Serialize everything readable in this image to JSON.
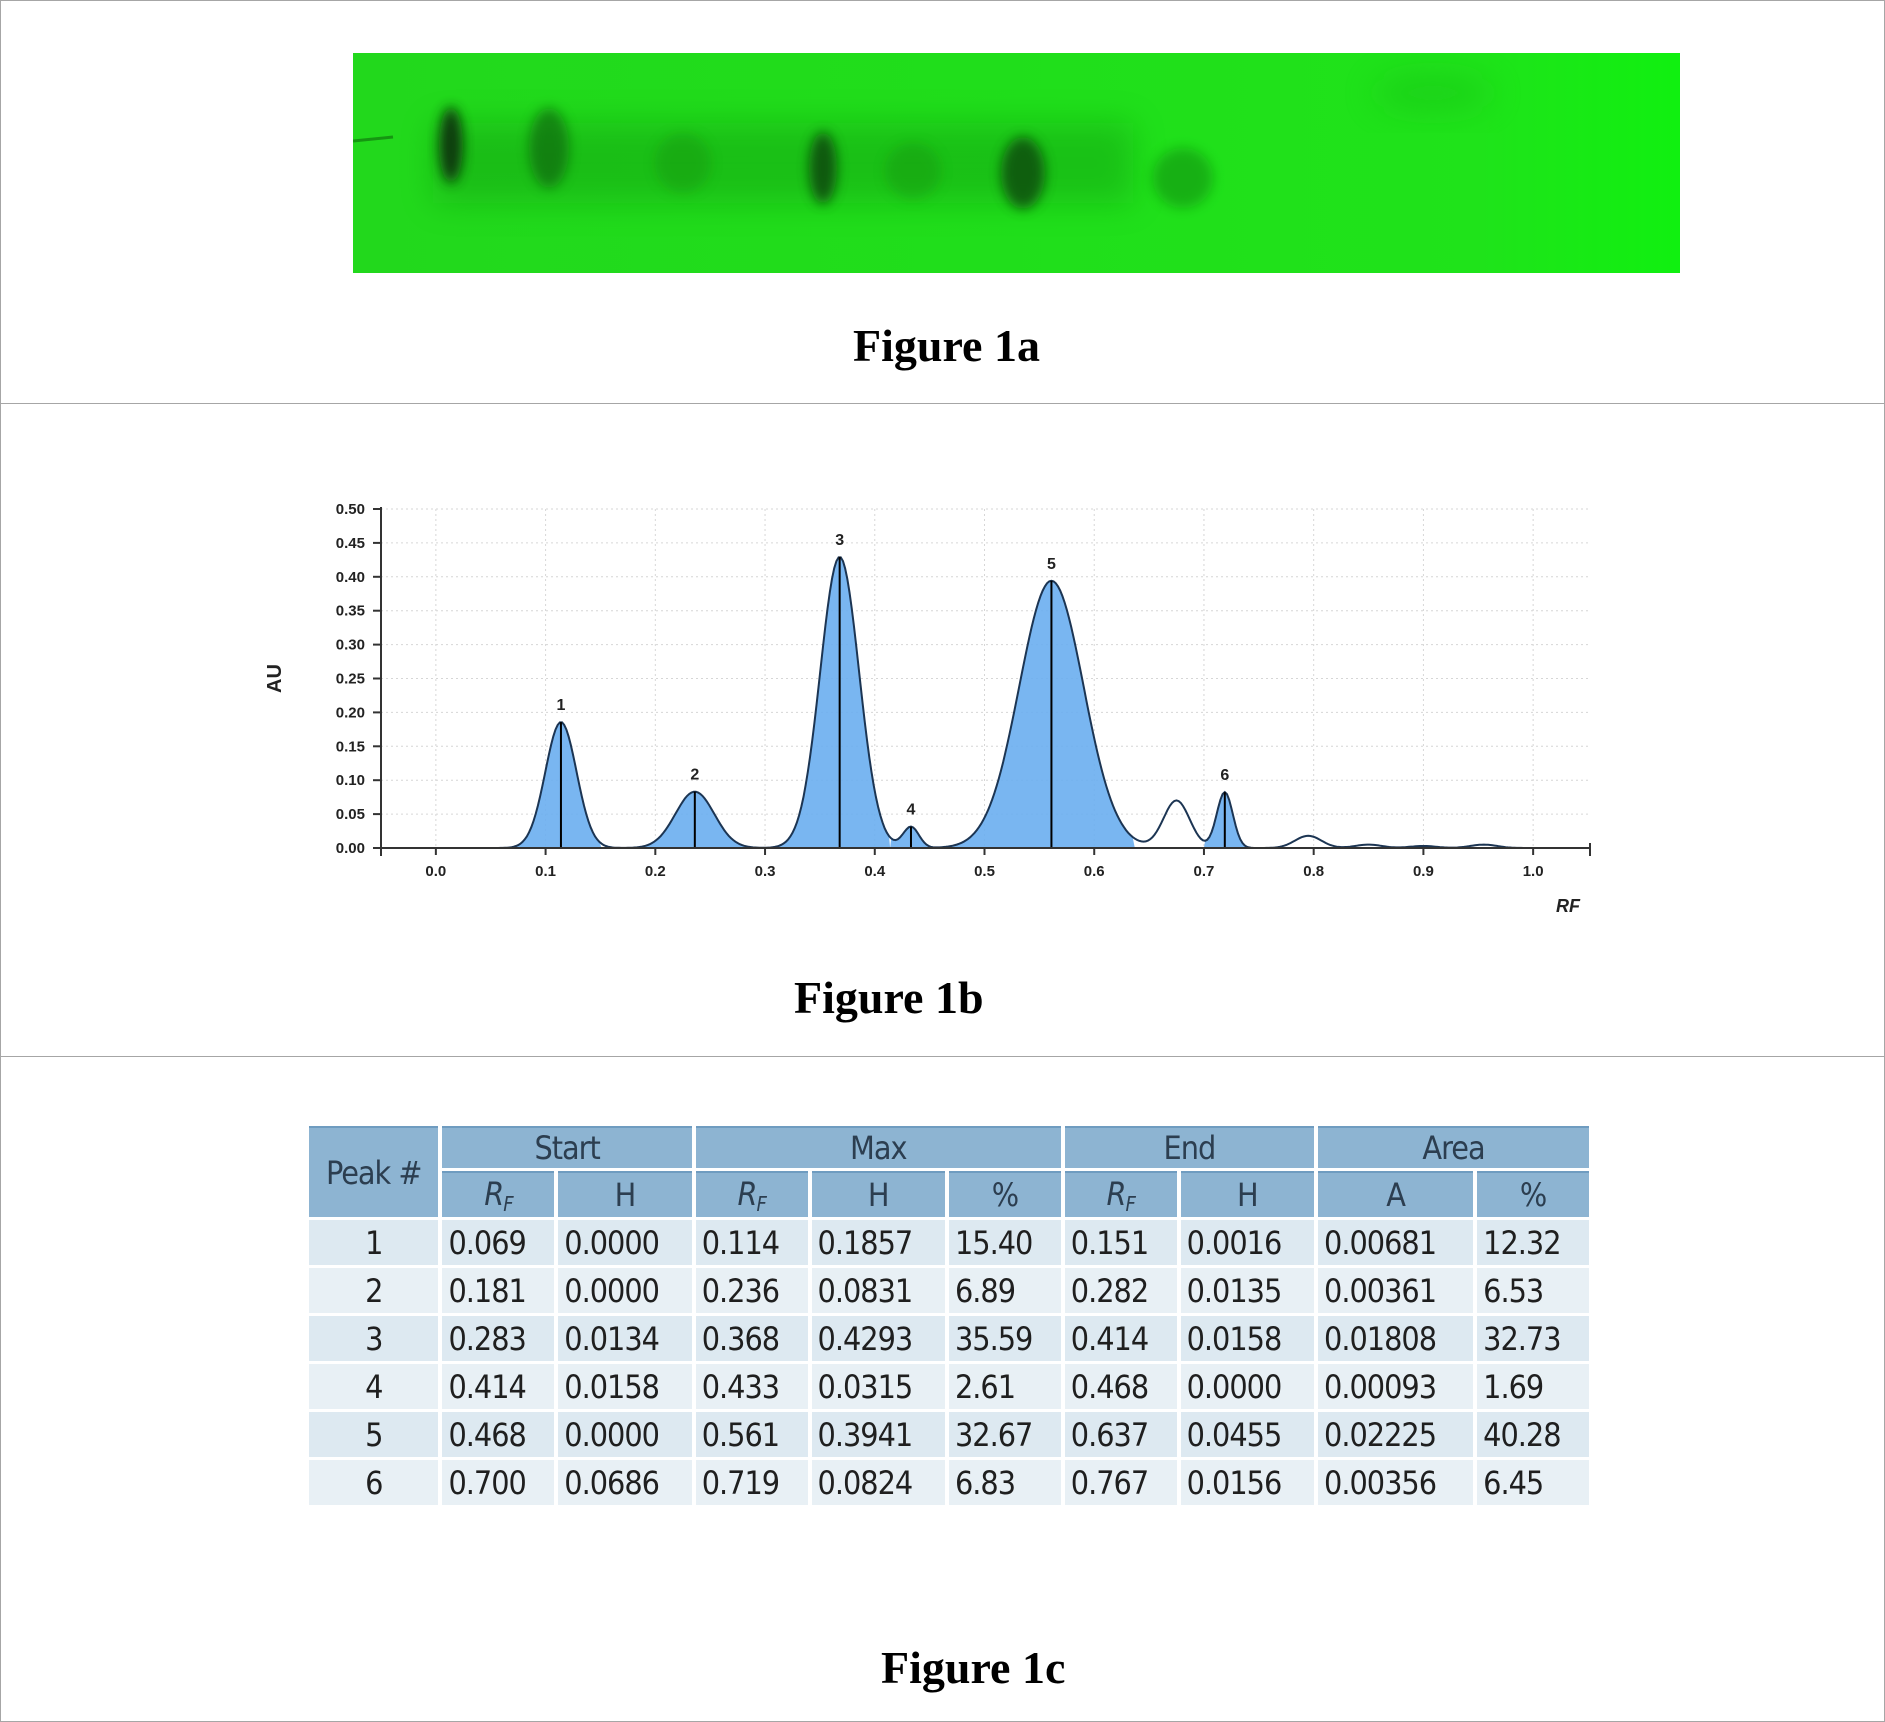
{
  "figure_a": {
    "caption": "Figure 1a",
    "colors": {
      "plate": "#21e21b",
      "spot": "#0b3d08"
    }
  },
  "figure_b": {
    "caption": "Figure 1b"
  },
  "figure_c": {
    "caption": "Figure 1c",
    "table": {
      "header_peak": "Peak #",
      "groups": [
        "Start",
        "Max",
        "End",
        "Area"
      ],
      "subheaders": {
        "start": [
          "RF",
          "H"
        ],
        "max": [
          "RF",
          "H",
          "%"
        ],
        "end": [
          "RF",
          "H"
        ],
        "area": [
          "A",
          "%"
        ]
      },
      "rows": [
        [
          "1",
          "0.069",
          "0.0000",
          "0.114",
          "0.1857",
          "15.40",
          "0.151",
          "0.0016",
          "0.00681",
          "12.32"
        ],
        [
          "2",
          "0.181",
          "0.0000",
          "0.236",
          "0.0831",
          "6.89",
          "0.282",
          "0.0135",
          "0.00361",
          "6.53"
        ],
        [
          "3",
          "0.283",
          "0.0134",
          "0.368",
          "0.4293",
          "35.59",
          "0.414",
          "0.0158",
          "0.01808",
          "32.73"
        ],
        [
          "4",
          "0.414",
          "0.0158",
          "0.433",
          "0.0315",
          "2.61",
          "0.468",
          "0.0000",
          "0.00093",
          "1.69"
        ],
        [
          "5",
          "0.468",
          "0.0000",
          "0.561",
          "0.3941",
          "32.67",
          "0.637",
          "0.0455",
          "0.02225",
          "40.28"
        ],
        [
          "6",
          "0.700",
          "0.0686",
          "0.719",
          "0.0824",
          "6.83",
          "0.767",
          "0.0156",
          "0.00356",
          "6.45"
        ]
      ],
      "colors": {
        "header": "#8db4d2",
        "row": "#dde9f1"
      }
    }
  },
  "chart_data": {
    "type": "line",
    "title": "",
    "xlabel": "RF",
    "ylabel": "AU",
    "xlim": [
      -0.05,
      1.05
    ],
    "ylim": [
      0,
      0.5
    ],
    "x_ticks": [
      "0.0",
      "0.1",
      "0.2",
      "0.3",
      "0.4",
      "0.5",
      "0.6",
      "0.7",
      "0.8",
      "0.9",
      "1.0"
    ],
    "y_ticks": [
      "0.00",
      "0.05",
      "0.10",
      "0.15",
      "0.20",
      "0.25",
      "0.30",
      "0.35",
      "0.40",
      "0.45",
      "0.50"
    ],
    "grid": true,
    "fill_color": "#6aaef0",
    "line_color": "#1c3553",
    "peaks": [
      {
        "label": "1",
        "start": 0.069,
        "max_rf": 0.114,
        "max_h": 0.1857,
        "end": 0.151,
        "end_h": 0.0016
      },
      {
        "label": "2",
        "start": 0.181,
        "max_rf": 0.236,
        "max_h": 0.0831,
        "end": 0.282,
        "end_h": 0.0135
      },
      {
        "label": "3",
        "start": 0.283,
        "max_rf": 0.368,
        "max_h": 0.4293,
        "end": 0.414,
        "end_h": 0.0158
      },
      {
        "label": "4",
        "start": 0.414,
        "max_rf": 0.433,
        "max_h": 0.0315,
        "end": 0.468,
        "end_h": 0.0
      },
      {
        "label": "5",
        "start": 0.468,
        "max_rf": 0.561,
        "max_h": 0.3941,
        "end": 0.637,
        "end_h": 0.0455
      },
      {
        "label": "6",
        "start": 0.7,
        "max_rf": 0.719,
        "max_h": 0.0824,
        "end": 0.767,
        "end_h": 0.0156
      }
    ],
    "baseline_features": [
      {
        "rf": 0.675,
        "h": 0.07
      },
      {
        "rf": 0.795,
        "h": 0.018
      },
      {
        "rf": 0.85,
        "h": 0.005
      },
      {
        "rf": 0.9,
        "h": 0.003
      },
      {
        "rf": 0.955,
        "h": 0.005
      }
    ]
  }
}
